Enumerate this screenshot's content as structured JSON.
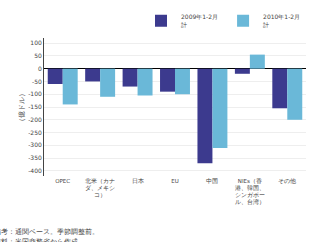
{
  "chart_data": {
    "type": "bar",
    "ylabel": "（億ドル）",
    "categories": [
      "OPEC",
      "北米（カナ\nダ、メキシ\nコ）",
      "日本",
      "EU",
      "中国",
      "NIEs（香\n港、韓国、\nシンガポー\nル、台湾）",
      "その他"
    ],
    "series": [
      {
        "name": "2009年1-2月\n計",
        "color": "#3c3a8e",
        "values": [
          -60,
          -50,
          -70,
          -90,
          -370,
          -20,
          -155
        ]
      },
      {
        "name": "2010年1-2月\n計",
        "color": "#6ab8d8",
        "values": [
          -140,
          -110,
          -105,
          -100,
          -310,
          55,
          -200
        ]
      }
    ],
    "ylim": [
      -420,
      120
    ],
    "yticks": [
      100,
      50,
      0,
      -50,
      -100,
      -150,
      -200,
      -250,
      -300,
      -350,
      -400
    ],
    "grid": true,
    "legend": "upper right",
    "annotations": [
      "備考：通関ベース。季節調整前。",
      "資料：米国商務省から作成。"
    ]
  }
}
